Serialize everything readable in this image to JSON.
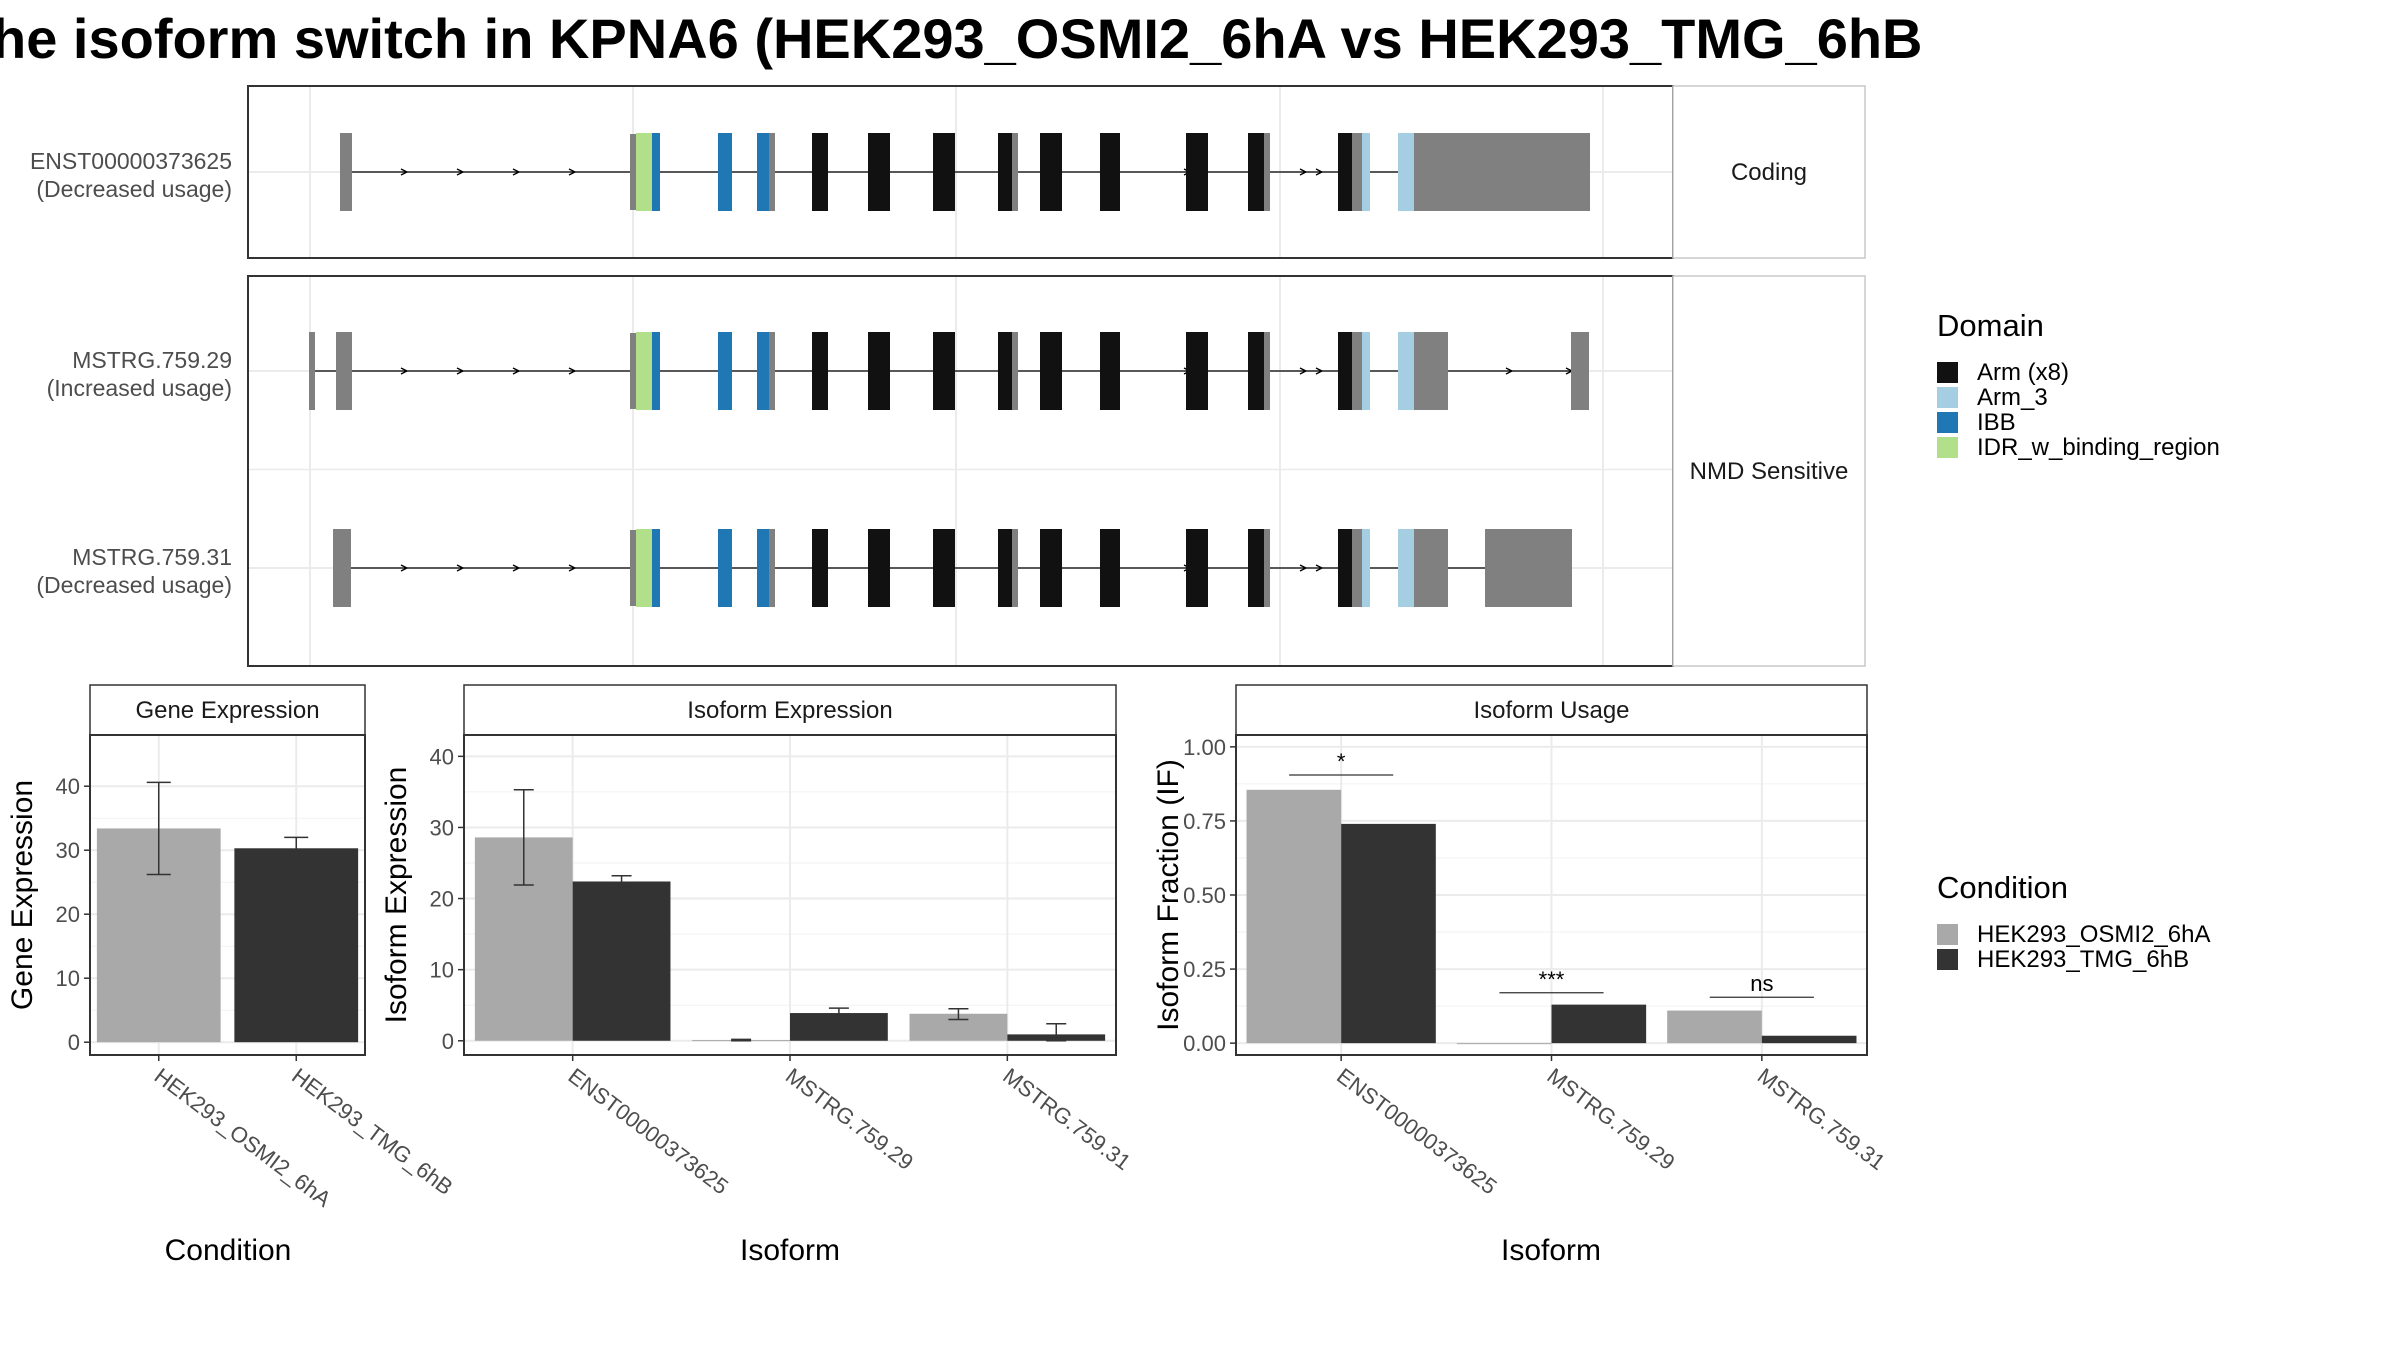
{
  "title": "he isoform switch in KPNA6 (HEK293_OSMI2_6hA vs HEK293_TMG_6hB",
  "colors": {
    "condition_a": "#a9a9a9",
    "condition_b": "#333333",
    "domain_arm_x8": "#111111",
    "domain_arm_3": "#a6cee3",
    "domain_ibb": "#1f78b4",
    "domain_idr": "#b2df8a",
    "exon_utr": "#808080",
    "panel_border": "#333333",
    "grid": "#ebebeb"
  },
  "transcript_panels": [
    {
      "strip_label": "Coding",
      "tracks": [
        {
          "id": "ENST00000373625",
          "usage": "(Decreased usage)"
        }
      ]
    },
    {
      "strip_label": "NMD Sensitive",
      "tracks": [
        {
          "id": "MSTRG.759.29",
          "usage": "(Increased usage)"
        },
        {
          "id": "MSTRG.759.31",
          "usage": "(Decreased usage)"
        }
      ]
    }
  ],
  "legends": {
    "domain": {
      "title": "Domain",
      "items": [
        {
          "label": "Arm (x8)",
          "color": "#111111"
        },
        {
          "label": "Arm_3",
          "color": "#a6cee3"
        },
        {
          "label": "IBB",
          "color": "#1f78b4"
        },
        {
          "label": "IDR_w_binding_region",
          "color": "#b2df8a"
        }
      ]
    },
    "condition": {
      "title": "Condition",
      "items": [
        {
          "label": "HEK293_OSMI2_6hA",
          "color": "#a9a9a9"
        },
        {
          "label": "HEK293_TMG_6hB",
          "color": "#333333"
        }
      ]
    }
  },
  "chart_data": [
    {
      "type": "bar",
      "panel_title": "Gene Expression",
      "xlabel": "Condition",
      "ylabel": "Gene Expression",
      "categories": [
        "HEK293_OSMI2_6hA",
        "HEK293_TMG_6hB"
      ],
      "values": [
        33.4,
        30.3
      ],
      "errors_low": [
        26.2,
        28.6
      ],
      "errors_high": [
        40.6,
        32.0
      ],
      "ylim": [
        -2,
        48
      ],
      "yticks": [
        0,
        10,
        20,
        30,
        40
      ],
      "grid": true
    },
    {
      "type": "bar",
      "panel_title": "Isoform Expression",
      "xlabel": "Isoform",
      "ylabel": "Isoform Expression",
      "categories": [
        "ENST00000373625",
        "MSTRG.759.29",
        "MSTRG.759.31"
      ],
      "series": [
        {
          "name": "HEK293_OSMI2_6hA",
          "values": [
            28.6,
            0.1,
            3.8
          ],
          "errors_low": [
            21.9,
            0.0,
            3.0
          ],
          "errors_high": [
            35.3,
            0.2,
            4.5
          ]
        },
        {
          "name": "HEK293_TMG_6hB",
          "values": [
            22.4,
            3.9,
            0.9
          ],
          "errors_low": [
            21.6,
            3.3,
            0.0
          ],
          "errors_high": [
            23.2,
            4.6,
            2.4
          ]
        }
      ],
      "ylim": [
        -2,
        43
      ],
      "yticks": [
        0,
        10,
        20,
        30,
        40
      ],
      "grid": true
    },
    {
      "type": "bar",
      "panel_title": "Isoform Usage",
      "xlabel": "Isoform",
      "ylabel": "Isoform Fraction (IF)",
      "categories": [
        "ENST00000373625",
        "MSTRG.759.29",
        "MSTRG.759.31"
      ],
      "series": [
        {
          "name": "HEK293_OSMI2_6hA",
          "values": [
            0.855,
            0.0,
            0.11
          ]
        },
        {
          "name": "HEK293_TMG_6hB",
          "values": [
            0.74,
            0.13,
            0.025
          ]
        }
      ],
      "significance": [
        "*",
        "***",
        "ns"
      ],
      "significance_level": [
        0.905,
        0.17,
        0.155
      ],
      "ylim": [
        -0.04,
        1.04
      ],
      "yticks": [
        "0.00",
        "0.25",
        "0.50",
        "0.75",
        "1.00"
      ],
      "ytick_values": [
        0,
        0.25,
        0.5,
        0.75,
        1.0
      ],
      "grid": true
    }
  ]
}
